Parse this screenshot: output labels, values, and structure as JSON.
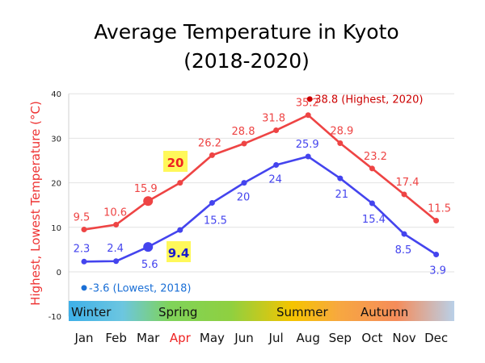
{
  "chart_data": {
    "type": "line",
    "title": "Average Temperature in Kyoto",
    "subtitle": "(2018-2020)",
    "ylabel": "Highest, Lowest Temperature (°C)",
    "ylim": [
      -10,
      40
    ],
    "yticks": [
      -10,
      0,
      10,
      20,
      30,
      40
    ],
    "grid": true,
    "categories": [
      "Jan",
      "Feb",
      "Mar",
      "Apr",
      "May",
      "Jun",
      "Jul",
      "Aug",
      "Sep",
      "Oct",
      "Nov",
      "Dec"
    ],
    "highlight_category": "Apr",
    "series": [
      {
        "key": "highest",
        "color": "#ee4444",
        "values": [
          9.5,
          10.6,
          15.9,
          20,
          26.2,
          28.8,
          31.8,
          35.2,
          28.9,
          23.2,
          17.4,
          11.5
        ],
        "labels": [
          "9.5",
          "10.6",
          "15.9",
          "20",
          "26.2",
          "28.8",
          "31.8",
          "35.2",
          "28.9",
          "23.2",
          "17.4",
          "11.5"
        ]
      },
      {
        "key": "lowest",
        "color": "#4444ee",
        "values": [
          2.3,
          2.4,
          5.6,
          9.4,
          15.5,
          20,
          24,
          25.9,
          21,
          15.4,
          8.5,
          3.9
        ],
        "labels": [
          "2.3",
          "2.4",
          "5.6",
          "9.4",
          "15.5",
          "20",
          "24",
          "25.9",
          "21",
          "15.4",
          "8.5",
          "3.9"
        ]
      }
    ],
    "annotations": [
      {
        "text": "38.8 (Highest, 2020)",
        "x": "Aug",
        "y": 38.8,
        "color": "#cc0000"
      },
      {
        "text": "-3.6 (Lowest, 2018)",
        "x": "Jan",
        "y": -3.6,
        "color": "#1a6fd6"
      }
    ],
    "seasons": [
      {
        "label": "Winter",
        "color": "#3eb0e8"
      },
      {
        "label": "Spring",
        "color": "#7fd35a"
      },
      {
        "label": "Summer",
        "color": "#f5c400"
      },
      {
        "label": "Autumn",
        "color": "#f58c5a"
      }
    ]
  }
}
